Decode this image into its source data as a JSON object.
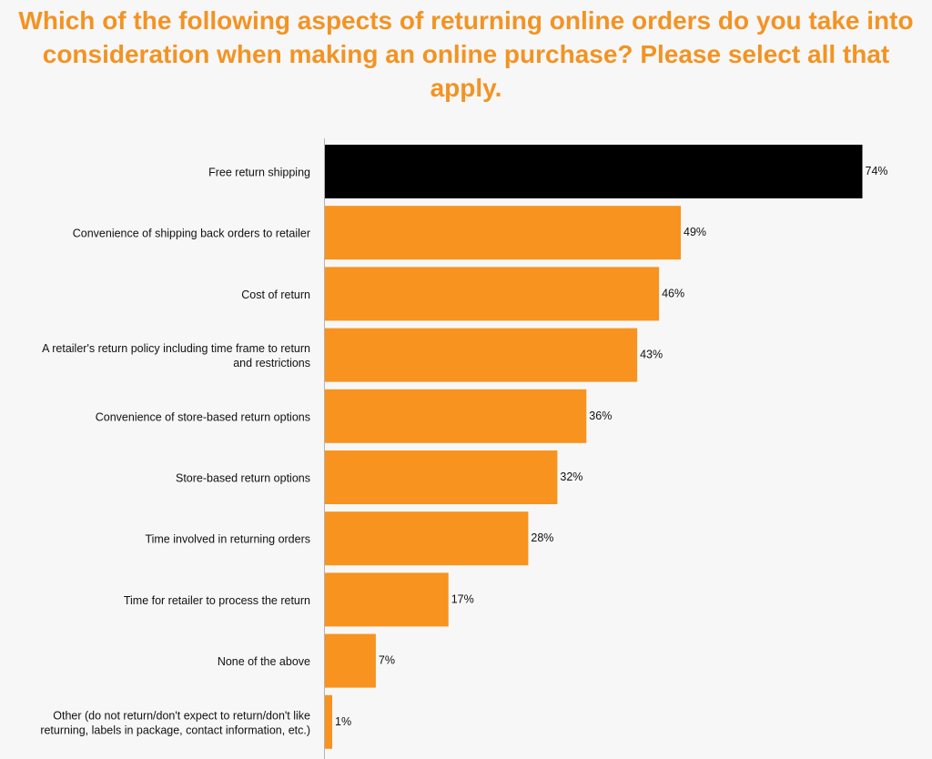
{
  "chart_data": {
    "type": "bar",
    "orientation": "horizontal",
    "title": "Which of the following aspects of returning online orders do you take into consideration when making an online purchase? Please select all that apply.",
    "xlabel": "",
    "ylabel": "",
    "value_suffix": "%",
    "xlim": [
      0,
      74
    ],
    "grid": false,
    "legend": "none",
    "categories": [
      [
        "Free return shipping"
      ],
      [
        "Convenience of shipping back orders to retailer"
      ],
      [
        "Cost of return"
      ],
      [
        "A retailer's return policy including time frame to return",
        "and restrictions"
      ],
      [
        "Convenience of store-based return options"
      ],
      [
        "Store-based return options"
      ],
      [
        "Time involved in returning orders"
      ],
      [
        "Time for retailer to process the return"
      ],
      [
        "None of the above"
      ],
      [
        "Other (do not return/don't expect to return/don't like",
        "returning, labels in package, contact information, etc.)"
      ]
    ],
    "values": [
      74,
      49,
      46,
      43,
      36,
      32,
      28,
      17,
      7,
      1
    ],
    "bar_colors": [
      "#000000",
      "#f7931e",
      "#f7931e",
      "#f7931e",
      "#f7931e",
      "#f7931e",
      "#f7931e",
      "#f7931e",
      "#f7931e",
      "#f7931e"
    ]
  },
  "colors": {
    "title": "#f39323",
    "accent_bar": "#f7931e",
    "highlight_bar": "#000000",
    "axis": "#b3b3b3",
    "background": "#f7f7f7"
  }
}
